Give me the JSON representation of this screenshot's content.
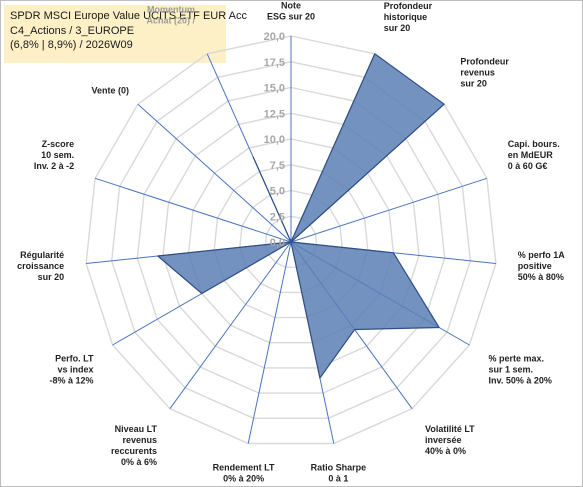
{
  "title": {
    "line1": "SPDR MSCI Europe Value UCITS ETF EUR Acc",
    "line2": "C4_Actions / 3_EUROPE",
    "line3": "(6,8% | 8,9%) / 2026W09"
  },
  "chart_data": {
    "type": "radar",
    "ylim": [
      0,
      20
    ],
    "ticks": [
      "0,0",
      "2,5",
      "5,0",
      "7,5",
      "10,0",
      "12,5",
      "15,0",
      "17,5",
      "20,0"
    ],
    "categories": [
      [
        "Note",
        "ESG sur 20"
      ],
      [
        "Profondeur",
        "historique",
        "sur 20"
      ],
      [
        "Profondeur",
        "revenus",
        "sur 20"
      ],
      [
        "Capi. bours.",
        "en MdEUR",
        "0 à 60 G€"
      ],
      [
        "% perfo 1A",
        "positive",
        "50% à 80%"
      ],
      [
        "% perte max.",
        "sur 1 sem.",
        "Inv. 50% à 20%"
      ],
      [
        "Volatilité LT",
        "inversée",
        "40% à 0%"
      ],
      [
        "Ratio Sharpe",
        "0 à 1"
      ],
      [
        "Rendement LT",
        "0% à 20%"
      ],
      [
        "Niveau LT",
        "revenus",
        "reccurents",
        "0% à 6%"
      ],
      [
        "Perfo. LT",
        "vs index",
        "-8% à 12%"
      ],
      [
        "Régularité",
        "croissance",
        "sur 20"
      ],
      [
        "Z-score",
        "10 sem.",
        "Inv. 2 à -2"
      ],
      [
        "Vente (0)"
      ],
      [
        "Momentum",
        "Achat (20) /"
      ]
    ],
    "series": [
      {
        "values": [
          0,
          20,
          20,
          0,
          10,
          16.6,
          10.5,
          13.5,
          0,
          0,
          10,
          13,
          0,
          0,
          9
        ]
      }
    ],
    "fill_color": "#5b7fb5",
    "fill_opacity": 0.85,
    "stroke_color": "#2f4f85",
    "axis_color": "#4a74c0",
    "grid_color": "#d9d9d9"
  }
}
